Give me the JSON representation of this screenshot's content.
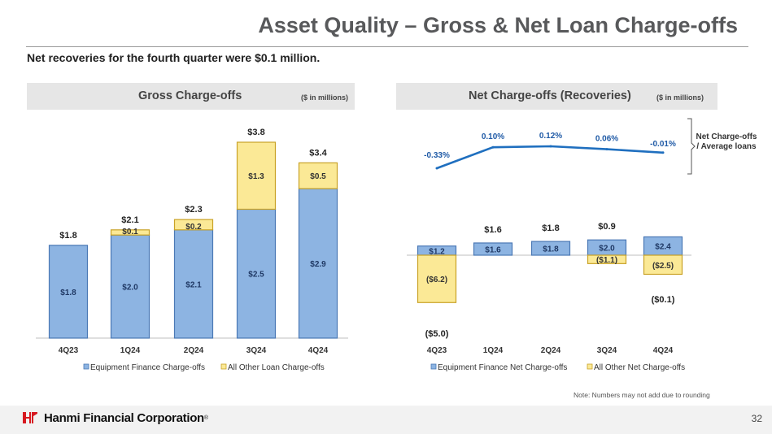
{
  "header": {
    "title": "Asset Quality – Gross & Net Loan Charge-offs",
    "subtitle": "Net recoveries for the fourth quarter were $0.1 million."
  },
  "gross_panel": {
    "title": "Gross Charge-offs",
    "unit": "($ in millions)"
  },
  "net_panel": {
    "title": "Net Charge-offs (Recoveries)",
    "unit": "($ in millions)",
    "ratio_label": "Net Charge-offs / Average loans"
  },
  "chart_data": [
    {
      "type": "bar",
      "stacked": true,
      "title": "Gross Charge-offs",
      "categories": [
        "4Q23",
        "1Q24",
        "2Q24",
        "3Q24",
        "4Q24"
      ],
      "series": [
        {
          "name": "Equipment Finance Charge-offs",
          "values": [
            1.8,
            2.0,
            2.1,
            2.5,
            2.9
          ],
          "labels": [
            "$1.8",
            "$2.0",
            "$2.1",
            "$2.5",
            "$2.9"
          ],
          "color": "#8db4e2"
        },
        {
          "name": "All Other Loan Charge-offs",
          "values": [
            0.0,
            0.1,
            0.2,
            1.3,
            0.5
          ],
          "labels": [
            "",
            "$0.1",
            "$0.2",
            "$1.3",
            "$0.5"
          ],
          "color": "#fbe996"
        }
      ],
      "totals": [
        "$1.8",
        "$2.1",
        "$2.3",
        "$3.8",
        "$3.4"
      ],
      "ylim": [
        0,
        4.2
      ],
      "legend": "bottom"
    },
    {
      "type": "bar",
      "stacked": true,
      "title": "Net Charge-offs (Recoveries)",
      "categories": [
        "4Q23",
        "1Q24",
        "2Q24",
        "3Q24",
        "4Q24"
      ],
      "series": [
        {
          "name": "Equipment Finance Net Charge-offs",
          "values": [
            1.2,
            1.6,
            1.8,
            2.0,
            2.4
          ],
          "labels": [
            "$1.2",
            "$1.6",
            "$1.8",
            "$2.0",
            "$2.4"
          ],
          "color": "#8db4e2"
        },
        {
          "name": "All Other Net Charge-offs",
          "values": [
            -6.2,
            0.0,
            0.0,
            -1.1,
            -2.5
          ],
          "labels": [
            "($6.2)",
            "",
            "",
            "($1.1)",
            "($2.5)"
          ],
          "color": "#fbe996"
        }
      ],
      "totals": [
        "($5.0)",
        "$1.6",
        "$1.8",
        "$0.9",
        "($0.1)"
      ],
      "ylim": [
        -6.4,
        2.8
      ],
      "legend": "bottom"
    },
    {
      "type": "line",
      "title": "Net Charge-offs / Average loans",
      "categories": [
        "4Q23",
        "1Q24",
        "2Q24",
        "3Q24",
        "4Q24"
      ],
      "values": [
        -0.33,
        0.1,
        0.12,
        0.06,
        -0.01
      ],
      "labels": [
        "-0.33%",
        "0.10%",
        "0.12%",
        "0.06%",
        "-0.01%"
      ],
      "color": "#1f6fbf"
    }
  ],
  "footer": {
    "note": "Note: Numbers may not add due to rounding",
    "company": "Hanmi Financial Corporation",
    "trademark": "®",
    "page": "32"
  }
}
